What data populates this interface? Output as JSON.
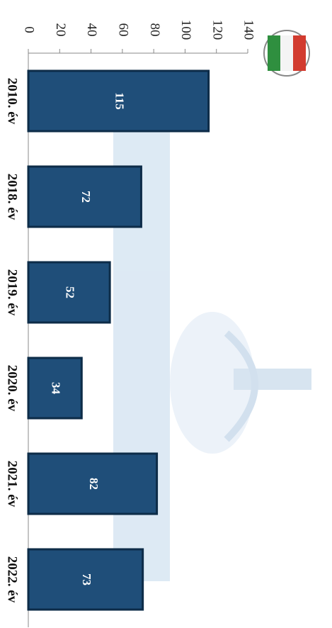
{
  "chart_data": {
    "type": "bar",
    "orientation": "horizontal",
    "categories": [
      "2010. év",
      "2018. év",
      "2019. év",
      "2020. év",
      "2021. év",
      "2022. év"
    ],
    "values": [
      115,
      72,
      52,
      34,
      82,
      73
    ],
    "color": "#1f4e79",
    "xlim": [
      0,
      140
    ],
    "xticks": [
      0,
      20,
      40,
      60,
      80,
      100,
      120,
      140
    ]
  }
}
